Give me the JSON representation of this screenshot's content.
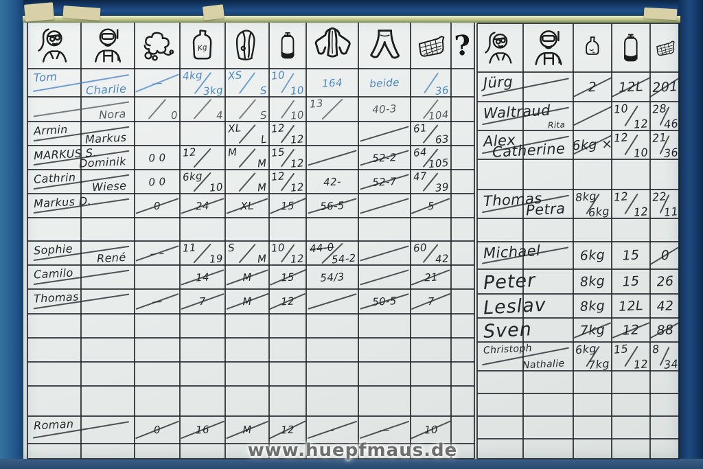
{
  "watermark": "www.huepfmaus.de",
  "colors": {
    "marker_blue": "#4e87c6",
    "marker_black": "#24262a",
    "marker_gray": "#585c60",
    "board_white": "#e8eceb",
    "frame_blue": "#24598e"
  },
  "left_table": {
    "header_icons": [
      "female-diver",
      "male-diver",
      "regulator",
      "weight-bottle",
      "bcd-vest",
      "tank",
      "wetsuit-top",
      "wetsuit-pants",
      "basket",
      "question-mark"
    ],
    "rows": [
      {
        "r": 0,
        "ink": "blue",
        "name": {
          "a": "Tom",
          "b": "Charlie",
          "slash": true
        },
        "cells": [
          {
            "col": 2,
            "t": "—",
            "slash": true
          },
          {
            "col": 3,
            "a": "4kg",
            "b": "3kg"
          },
          {
            "col": 4,
            "a": "XS",
            "b": "S"
          },
          {
            "col": 5,
            "a": "10",
            "b": "10"
          },
          {
            "col": 6,
            "t": "164"
          },
          {
            "col": 7,
            "t": "beide"
          },
          {
            "col": 8,
            "a": "",
            "b": "36"
          }
        ]
      },
      {
        "r": 1,
        "ink": "gray",
        "name": {
          "a": "",
          "b": "Nora",
          "slash": true
        },
        "cells": [
          {
            "col": 2,
            "a": "",
            "b": "0"
          },
          {
            "col": 3,
            "a": "",
            "b": "4"
          },
          {
            "col": 4,
            "a": "",
            "b": "S"
          },
          {
            "col": 5,
            "a": "",
            "b": "10"
          },
          {
            "col": 6,
            "a": "13",
            "b": ""
          },
          {
            "col": 7,
            "t": "40-3"
          },
          {
            "col": 8,
            "a": "",
            "b": "104"
          }
        ]
      },
      {
        "r": 2,
        "ink": "black",
        "name": {
          "a": "Armin",
          "b": "Markus",
          "slash": true
        },
        "cells": [
          {
            "col": 4,
            "a": "XL",
            "b": "L"
          },
          {
            "col": 5,
            "a": "12",
            "b": "12"
          },
          {
            "col": 7,
            "slash": true
          },
          {
            "col": 8,
            "a": "61",
            "b": "63"
          }
        ]
      },
      {
        "r": 3,
        "ink": "black",
        "name": {
          "a": "MARKUS S.",
          "b": "Dominik",
          "slash": true
        },
        "cells": [
          {
            "col": 2,
            "t": "0 0"
          },
          {
            "col": 3,
            "a": "12",
            "b": ""
          },
          {
            "col": 4,
            "a": "M",
            "b": "M"
          },
          {
            "col": 5,
            "a": "15",
            "b": "12"
          },
          {
            "col": 6,
            "slash": true
          },
          {
            "col": 7,
            "t": "52-2",
            "slash": true
          },
          {
            "col": 8,
            "a": "64",
            "b": "105"
          }
        ]
      },
      {
        "r": 4,
        "ink": "black",
        "name": {
          "a": "Cathrin",
          "b": "Wiese",
          "slash": true
        },
        "cells": [
          {
            "col": 2,
            "t": "0 0"
          },
          {
            "col": 3,
            "a": "6kg",
            "b": "10"
          },
          {
            "col": 4,
            "a": "",
            "b": "M"
          },
          {
            "col": 5,
            "a": "12",
            "b": "12"
          },
          {
            "col": 6,
            "t": "42-"
          },
          {
            "col": 7,
            "t": "52-7",
            "slash": true
          },
          {
            "col": 8,
            "a": "47",
            "b": "39"
          }
        ]
      },
      {
        "r": 5,
        "ink": "black",
        "name": {
          "a": "Markus D.",
          "b": "",
          "slash": true
        },
        "cells": [
          {
            "col": 2,
            "t": "0",
            "slash": true
          },
          {
            "col": 3,
            "t": "24",
            "slash": true
          },
          {
            "col": 4,
            "t": "XL",
            "slash": true
          },
          {
            "col": 5,
            "t": "15",
            "slash": true
          },
          {
            "col": 6,
            "t": "56-5",
            "slash": true
          },
          {
            "col": 7,
            "slash": true
          },
          {
            "col": 8,
            "t": "5",
            "slash": true
          }
        ]
      },
      {
        "r": 7,
        "ink": "black",
        "name": {
          "a": "Sophie",
          "b": "René",
          "slash": true
        },
        "cells": [
          {
            "col": 2,
            "t": "– –",
            "slash": true
          },
          {
            "col": 3,
            "a": "11",
            "b": "19"
          },
          {
            "col": 4,
            "a": "S",
            "b": "M"
          },
          {
            "col": 5,
            "a": "10",
            "b": "12"
          },
          {
            "col": 6,
            "a": "44-0",
            "a_struck": true,
            "b": "54-2"
          },
          {
            "col": 7,
            "slash": true
          },
          {
            "col": 8,
            "a": "60",
            "b": "42"
          }
        ]
      },
      {
        "r": 8,
        "ink": "black",
        "name": {
          "a": "Camilo",
          "b": "",
          "slash": true
        },
        "cells": [
          {
            "col": 3,
            "t": "14",
            "slash": true
          },
          {
            "col": 4,
            "t": "M",
            "slash": true
          },
          {
            "col": 5,
            "t": "15",
            "slash": true
          },
          {
            "col": 6,
            "t": "54/3"
          },
          {
            "col": 7,
            "slash": true
          },
          {
            "col": 8,
            "t": "21",
            "slash": true
          }
        ]
      },
      {
        "r": 9,
        "ink": "black",
        "name": {
          "a": "Thomas",
          "b": "",
          "slash": true
        },
        "cells": [
          {
            "col": 2,
            "t": "—",
            "slash": true
          },
          {
            "col": 3,
            "t": "7",
            "slash": true
          },
          {
            "col": 4,
            "t": "M",
            "slash": true
          },
          {
            "col": 5,
            "t": "12",
            "slash": true
          },
          {
            "col": 6,
            "slash": true
          },
          {
            "col": 7,
            "t": "50-5",
            "slash": true
          },
          {
            "col": 8,
            "t": "7",
            "slash": true
          }
        ]
      },
      {
        "r": 14,
        "ink": "black",
        "name": {
          "a": "Roman",
          "b": "",
          "slash": true
        },
        "cells": [
          {
            "col": 2,
            "t": "0",
            "slash": true
          },
          {
            "col": 3,
            "t": "16",
            "slash": true
          },
          {
            "col": 4,
            "t": "M",
            "slash": true
          },
          {
            "col": 5,
            "t": "12",
            "slash": true
          },
          {
            "col": 6,
            "t": "-",
            "slash": true
          },
          {
            "col": 7,
            "t": "—",
            "slash": true
          },
          {
            "col": 8,
            "t": "10",
            "slash": true
          }
        ]
      }
    ]
  },
  "right_table": {
    "header_icons": [
      "female-diver",
      "male-diver",
      "small-bottle",
      "tank",
      "basket"
    ],
    "rows": [
      {
        "r": 0,
        "ink": "black",
        "name": {
          "a": "Jürg",
          "b": "",
          "slash": true
        },
        "cells": [
          {
            "col": 2,
            "t": "2",
            "slash": true
          },
          {
            "col": 3,
            "t": "12L",
            "slash": true
          },
          {
            "col": 4,
            "t": "201",
            "slash": true
          }
        ]
      },
      {
        "r": 1,
        "ink": "black",
        "name": {
          "a": "Waltraud",
          "b": "Rita",
          "b_small": true,
          "slash": true
        },
        "cells": [
          {
            "col": 2,
            "slash": true
          },
          {
            "col": 3,
            "a": "10",
            "b": "12"
          },
          {
            "col": 4,
            "a": "28",
            "b": "46"
          }
        ]
      },
      {
        "r": 2,
        "ink": "black",
        "name": {
          "a": "Alex",
          "b": "Catherine",
          "slash": true
        },
        "cells": [
          {
            "col": 2,
            "t": "6kg ×",
            "slash": true
          },
          {
            "col": 3,
            "a": "12",
            "b": "10"
          },
          {
            "col": 4,
            "a": "21",
            "b": "36"
          }
        ]
      },
      {
        "r": 4,
        "ink": "black",
        "name": {
          "a": "Thomas",
          "b": "Petra",
          "slash": true
        },
        "cells": [
          {
            "col": 2,
            "a": "8kg",
            "b": "6kg"
          },
          {
            "col": 3,
            "a": "12",
            "b": "12"
          },
          {
            "col": 4,
            "a": "22",
            "b": "11"
          }
        ]
      },
      {
        "r": 6,
        "ink": "black",
        "name": {
          "a": "Michael",
          "b": "",
          "slash": true
        },
        "cells": [
          {
            "col": 2,
            "t": "6kg"
          },
          {
            "col": 3,
            "t": "15"
          },
          {
            "col": 4,
            "t": "0",
            "slash": true
          }
        ]
      },
      {
        "r": 7,
        "ink": "black",
        "size": "lg",
        "name": {
          "a": "Peter",
          "b": ""
        },
        "cells": [
          {
            "col": 2,
            "t": "8kg"
          },
          {
            "col": 3,
            "t": "15"
          },
          {
            "col": 4,
            "t": "26"
          }
        ]
      },
      {
        "r": 8,
        "ink": "black",
        "size": "lg",
        "name": {
          "a": "Leslav",
          "b": ""
        },
        "cells": [
          {
            "col": 2,
            "t": "8kg"
          },
          {
            "col": 3,
            "t": "12L"
          },
          {
            "col": 4,
            "t": "42"
          }
        ]
      },
      {
        "r": 9,
        "ink": "black",
        "size": "lg",
        "name": {
          "a": "Sven",
          "b": ""
        },
        "cells": [
          {
            "col": 2,
            "t": "7kg",
            "slash": true
          },
          {
            "col": 3,
            "t": "12",
            "slash": true
          },
          {
            "col": 4,
            "t": "88",
            "slash": true
          }
        ]
      },
      {
        "r": 10,
        "ink": "black",
        "size": "sm",
        "name": {
          "a": "Christoph",
          "b": "Nathalie",
          "slash": true
        },
        "cells": [
          {
            "col": 2,
            "a": "6kg",
            "b": "7kg"
          },
          {
            "col": 3,
            "a": "15",
            "b": "12"
          },
          {
            "col": 4,
            "a": "8",
            "b": "34"
          }
        ]
      }
    ]
  }
}
